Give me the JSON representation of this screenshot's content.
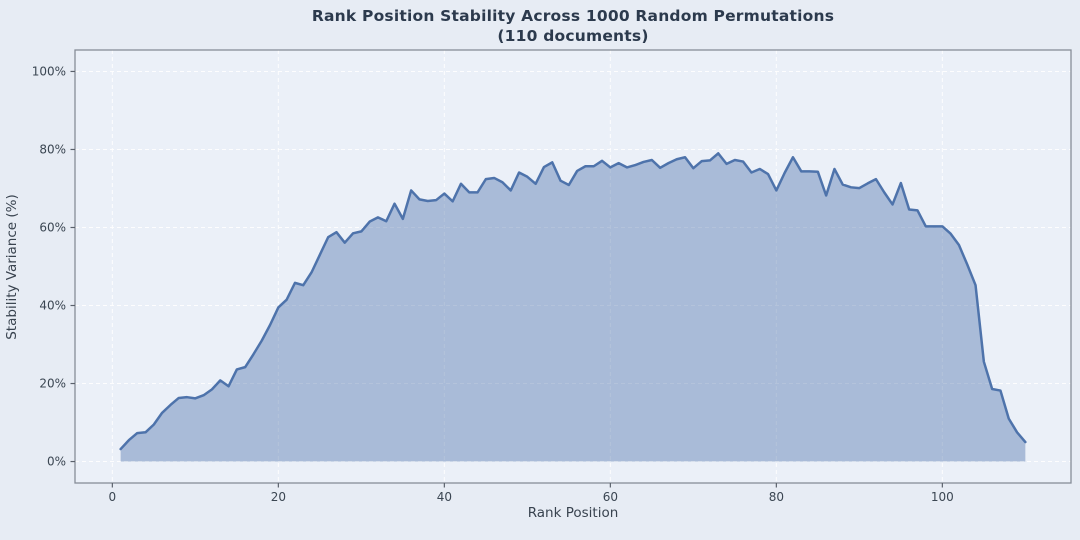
{
  "title": {
    "line1": "Rank Position Stability Across 1000 Random Permutations",
    "line2": "(110 documents)"
  },
  "axes": {
    "xlabel": "Rank Position",
    "ylabel": "Stability Variance (%)"
  },
  "chart_data": {
    "type": "area",
    "title": "Rank Position Stability Across 1000 Random Permutations (110 documents)",
    "xlabel": "Rank Position",
    "ylabel": "Stability Variance (%)",
    "rank_start": 1,
    "values": [
      3.2,
      5.5,
      7.3,
      7.5,
      9.5,
      12.5,
      14.5,
      16.3,
      16.5,
      16.2,
      17.0,
      18.5,
      20.8,
      19.3,
      23.6,
      24.2,
      27.5,
      31.0,
      35.0,
      39.5,
      41.5,
      45.8,
      45.2,
      48.5,
      53.0,
      57.5,
      58.8,
      56.1,
      58.5,
      59.0,
      61.5,
      62.6,
      61.6,
      66.1,
      62.2,
      69.5,
      67.2,
      66.8,
      67.0,
      68.7,
      66.7,
      71.2,
      69.0,
      69.0,
      72.4,
      72.7,
      71.6,
      69.5,
      74.1,
      73.0,
      71.2,
      75.5,
      76.7,
      72.0,
      70.9,
      74.5,
      75.7,
      75.7,
      77.1,
      75.4,
      76.5,
      75.4,
      76.0,
      76.8,
      77.3,
      75.3,
      76.5,
      77.5,
      78.0,
      75.2,
      77.0,
      77.2,
      79.0,
      76.3,
      77.3,
      76.9,
      74.1,
      75.0,
      73.7,
      69.5,
      74.0,
      78.0,
      74.4,
      74.4,
      74.3,
      68.2,
      75.0,
      71.0,
      70.3,
      70.1,
      71.3,
      72.4,
      69.0,
      65.9,
      71.4,
      64.6,
      64.4,
      60.3,
      60.3,
      60.3,
      58.4,
      55.5,
      50.5,
      45.2,
      25.6,
      18.6,
      18.2,
      11.0,
      7.5,
      5.0
    ],
    "xlim": [
      -4.5,
      115.5
    ],
    "ylim": [
      -5.5,
      105.5
    ],
    "x_ticks": [
      0,
      20,
      40,
      60,
      80,
      100
    ],
    "x_tick_labels": [
      "0",
      "20",
      "40",
      "60",
      "80",
      "100"
    ],
    "y_ticks": [
      0,
      20,
      40,
      60,
      80,
      100
    ],
    "y_tick_labels": [
      "0%",
      "20%",
      "40%",
      "60%",
      "80%",
      "100%"
    ],
    "grid": true,
    "grid_style": "dashed",
    "legend": "none",
    "colors": {
      "line": "#4e73ab",
      "fill": "rgba(78,115,171,0.42)",
      "grid": "#ffffff",
      "spine": "#878d97",
      "tick_mark": "#5a616b",
      "figure_bg": "#e7ecf4",
      "axes_bg": "#ebf0f8",
      "title_text": "#2c3a4d",
      "label_text": "#39434f",
      "tick_text": "#3b4652"
    }
  }
}
